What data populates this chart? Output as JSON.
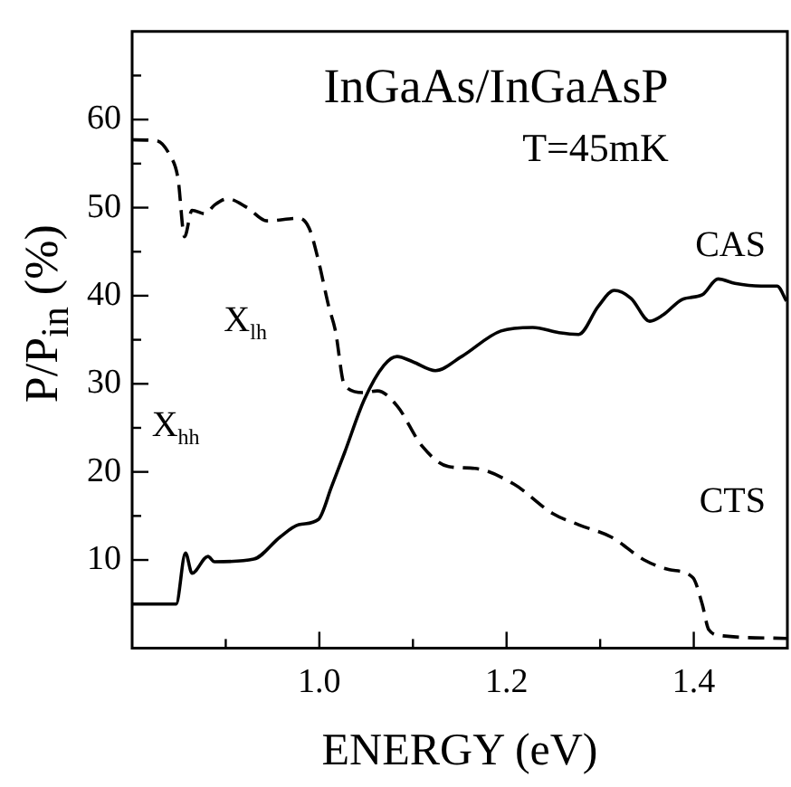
{
  "chart_data": {
    "type": "line",
    "title": "InGaAs/InGaAsP",
    "subtitle": "T=45mK",
    "xlabel": "ENERGY (eV)",
    "ylabel": "P/P$_{in}$ (%)",
    "xlim": [
      0.8,
      1.5
    ],
    "ylim": [
      0,
      70
    ],
    "xticks": [
      {
        "value": 0.9,
        "label": null
      },
      {
        "value": 1.0,
        "label": "1.0"
      },
      {
        "value": 1.1,
        "label": null
      },
      1.2,
      {
        "value": 1.3,
        "label": null
      },
      1.4
    ],
    "yticks": [
      {
        "value": 5,
        "label": null
      },
      10,
      {
        "value": 15,
        "label": null
      },
      20,
      {
        "value": 25,
        "label": null
      },
      30,
      {
        "value": 35,
        "label": null
      },
      40,
      {
        "value": 45,
        "label": null
      },
      50,
      {
        "value": 55,
        "label": null
      },
      60,
      {
        "value": 65,
        "label": null
      }
    ],
    "grid": false,
    "legend": false,
    "marker": "none",
    "series": [
      {
        "name": "CAS",
        "color": "#000000",
        "line_style": "solid",
        "x": [
          0.8,
          0.847,
          0.857,
          0.864,
          0.881,
          0.888,
          0.93,
          0.958,
          0.978,
          0.999,
          1.013,
          1.027,
          1.048,
          1.069,
          1.083,
          1.1,
          1.124,
          1.152,
          1.194,
          1.228,
          1.256,
          1.277,
          1.298,
          1.315,
          1.333,
          1.353,
          1.367,
          1.388,
          1.409,
          1.426,
          1.444,
          1.472,
          1.489,
          1.499
        ],
        "values": [
          5.0,
          5.0,
          10.8,
          8.5,
          10.4,
          9.8,
          10.1,
          12.6,
          14.0,
          14.6,
          18.3,
          22.2,
          28.2,
          32.1,
          33.1,
          32.5,
          31.5,
          33.1,
          36.0,
          36.4,
          35.8,
          35.6,
          38.8,
          40.6,
          39.7,
          37.1,
          37.8,
          39.6,
          40.1,
          41.9,
          41.4,
          41.1,
          41.1,
          39.4
        ]
      },
      {
        "name": "CTS",
        "color": "#000000",
        "line_style": "dashed",
        "x": [
          0.8,
          0.826,
          0.84,
          0.849,
          0.856,
          0.864,
          0.878,
          0.888,
          0.902,
          0.923,
          0.944,
          0.978,
          0.989,
          0.999,
          1.01,
          1.017,
          1.027,
          1.048,
          1.062,
          1.083,
          1.11,
          1.138,
          1.166,
          1.208,
          1.249,
          1.277,
          1.312,
          1.347,
          1.374,
          1.399,
          1.409,
          1.416,
          1.43,
          1.499
        ],
        "values": [
          57.7,
          57.6,
          56.0,
          53.3,
          46.7,
          49.7,
          49.3,
          50.3,
          51.0,
          50.0,
          48.5,
          48.8,
          47.7,
          44.0,
          38.8,
          36.1,
          29.8,
          29.0,
          29.2,
          27.5,
          22.9,
          20.6,
          20.4,
          18.6,
          15.3,
          14.0,
          12.6,
          10.0,
          8.9,
          8.0,
          5.0,
          2.1,
          1.4,
          1.1
        ]
      }
    ],
    "annotations": [
      "X$_{lh}$",
      "X$_{hh}$"
    ]
  }
}
